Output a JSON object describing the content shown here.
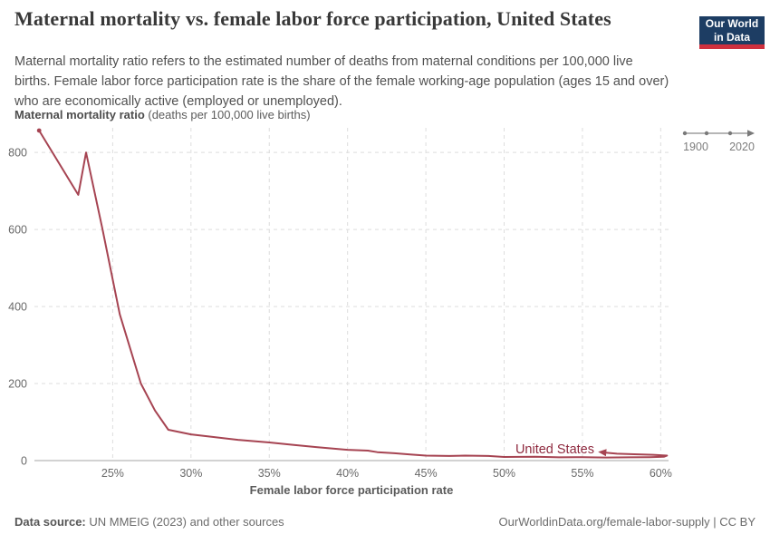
{
  "header": {
    "title": "Maternal mortality vs. female labor force participation, United States",
    "subtitle": "Maternal mortality ratio refers to the estimated number of deaths from maternal conditions per 100,000 live births. Female labor force participation rate is the share of the female working-age population (ages 15 and over) who are economically active (employed or unemployed).",
    "logo": {
      "line1": "Our World",
      "line2": "in Data",
      "bg": "#1d3d63",
      "stripe": "#cf303e"
    }
  },
  "timeline": {
    "start_label": "1900",
    "end_label": "2020"
  },
  "chart_data": {
    "type": "line",
    "title": "Maternal mortality ratio",
    "title_suffix": " (deaths per 100,000 live births)",
    "xlabel": "Female labor force participation rate",
    "series_label": "United States",
    "x_ticks": [
      "25%",
      "30%",
      "35%",
      "40%",
      "45%",
      "50%",
      "55%",
      "60%"
    ],
    "x_tick_values": [
      25,
      30,
      35,
      40,
      45,
      50,
      55,
      60
    ],
    "y_ticks": [
      0,
      200,
      400,
      600,
      800
    ],
    "xlim": [
      20,
      60.5
    ],
    "ylim": [
      0,
      864
    ],
    "grid": true,
    "line_color": "#a64452",
    "label_color": "#8f2a3f",
    "points": [
      [
        20.3,
        857
      ],
      [
        22.8,
        690
      ],
      [
        23.3,
        800
      ],
      [
        24.35,
        600
      ],
      [
        25.45,
        380
      ],
      [
        26.8,
        200
      ],
      [
        27.7,
        130
      ],
      [
        28.55,
        80
      ],
      [
        30,
        68
      ],
      [
        31.5,
        61
      ],
      [
        33,
        54
      ],
      [
        35,
        47
      ],
      [
        36.5,
        41
      ],
      [
        38,
        35
      ],
      [
        40,
        28
      ],
      [
        41.3,
        26
      ],
      [
        41.9,
        22
      ],
      [
        43,
        19
      ],
      [
        44,
        16
      ],
      [
        45,
        13
      ],
      [
        46.5,
        12
      ],
      [
        47.5,
        13
      ],
      [
        49,
        12
      ],
      [
        50,
        9.5
      ],
      [
        52,
        10
      ],
      [
        53.5,
        8.5
      ],
      [
        55,
        9
      ],
      [
        56.5,
        8
      ],
      [
        58,
        8.5
      ],
      [
        59.3,
        9
      ],
      [
        60.2,
        10
      ],
      [
        60.4,
        13
      ],
      [
        59.5,
        15
      ],
      [
        58.3,
        16.5
      ],
      [
        57.2,
        18
      ],
      [
        56.4,
        21
      ]
    ]
  },
  "footer": {
    "source_prefix": "Data source:",
    "source_text": " UN MMEIG (2023) and other sources",
    "right_text": "OurWorldinData.org/female-labor-supply | CC BY"
  }
}
